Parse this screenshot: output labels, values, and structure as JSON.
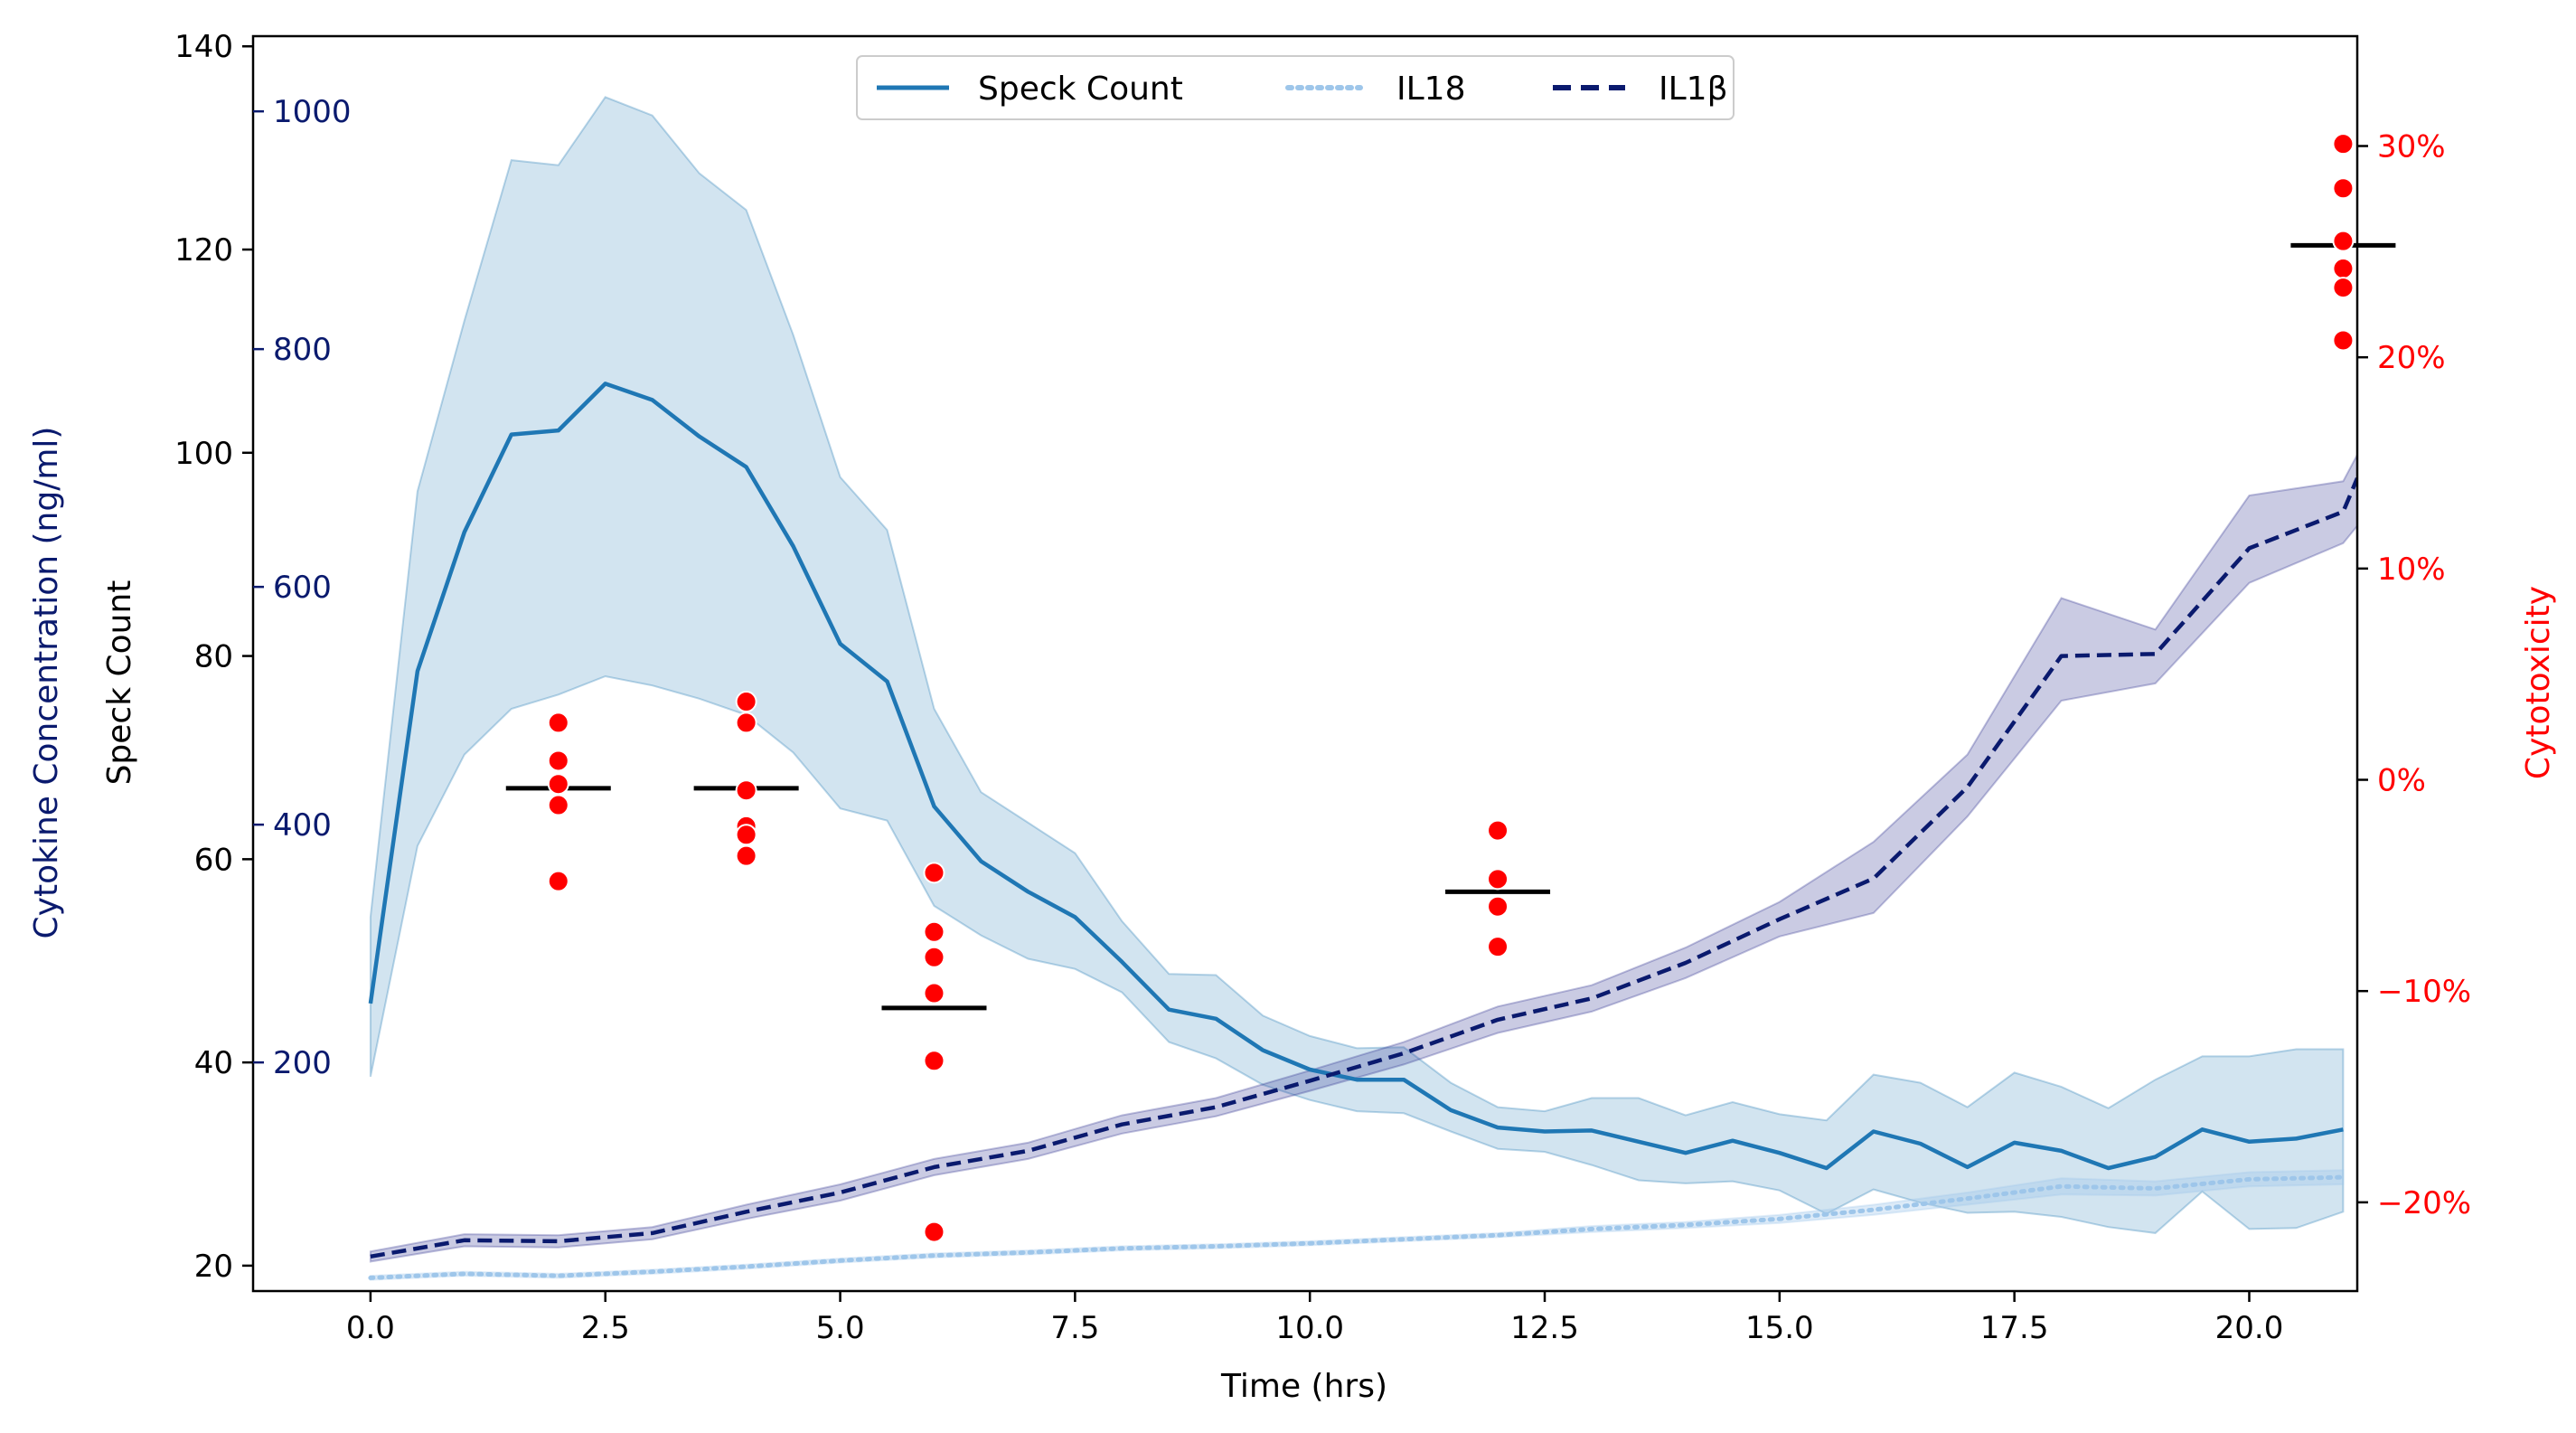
{
  "chart_data": {
    "type": "line",
    "xlabel": "Time (hrs)",
    "ylabel_left": "Speck Count",
    "ylabel_left_outer": "Cytokine Concentration (ng/ml)",
    "ylabel_right": "Cytotoxicity",
    "xlim": [
      -1.25,
      21.15
    ],
    "ylim_left": [
      17.5,
      141
    ],
    "x_ticks": [
      0.0,
      2.5,
      5.0,
      7.5,
      10.0,
      12.5,
      15.0,
      17.5,
      20.0
    ],
    "x_tick_labels": [
      "0.0",
      "2.5",
      "5.0",
      "7.5",
      "10.0",
      "12.5",
      "15.0",
      "17.5",
      "20.0"
    ],
    "y_left_ticks": [
      20,
      40,
      60,
      80,
      100,
      120,
      140
    ],
    "y_left_tick_labels": [
      "20",
      "40",
      "60",
      "80",
      "100",
      "120",
      "140"
    ],
    "cytokine_axis": {
      "ticks": [
        200,
        400,
        600,
        800,
        1000
      ],
      "tick_labels": [
        "200",
        "400",
        "600",
        "800",
        "1000"
      ],
      "speck_equivalent": [
        40,
        63.4,
        86.8,
        110.2,
        133.6
      ],
      "color": "#0a1a6e"
    },
    "cytotoxicity_axis": {
      "ticks": [
        -20,
        -10,
        0,
        10,
        20,
        30
      ],
      "tick_labels": [
        "−20%",
        "−10%",
        "0%",
        "10%",
        "20%",
        "30%"
      ],
      "ylim": [
        -24.2,
        35.2
      ],
      "color": "#ff0000"
    },
    "legend": {
      "placement": "top-center",
      "entries": [
        "Speck Count",
        "IL18",
        "IL1β"
      ]
    },
    "series": [
      {
        "name": "Speck Count",
        "color": "#1f77b4",
        "style": "solid",
        "x": [
          0,
          0.5,
          1,
          1.5,
          2,
          2.5,
          3,
          3.5,
          4,
          4.5,
          5,
          5.5,
          6,
          6.5,
          7,
          7.5,
          8,
          8.5,
          9,
          9.5,
          10,
          10.5,
          11,
          11.5,
          12,
          12.5,
          13,
          13.5,
          14,
          14.5,
          15,
          15.5,
          16,
          16.5,
          17,
          17.5,
          18,
          18.5,
          19,
          19.5,
          20,
          20.5,
          21
        ],
        "values": [
          45.8,
          78.5,
          92.2,
          101.8,
          102.2,
          106.8,
          105.2,
          101.6,
          98.6,
          90.8,
          81.2,
          77.5,
          65.2,
          59.8,
          56.8,
          54.3,
          49.9,
          45.2,
          44.3,
          41.2,
          39.3,
          38.3,
          38.3,
          35.3,
          33.6,
          33.2,
          33.3,
          32.2,
          31.1,
          32.3,
          31.1,
          29.6,
          33.2,
          32.0,
          29.7,
          32.1,
          31.3,
          29.6,
          30.7,
          33.4,
          32.2,
          32.5,
          33.4
        ],
        "ci_lower": [
          38.6,
          61.3,
          70.3,
          74.8,
          76.2,
          78.0,
          77.1,
          75.8,
          74.2,
          70.5,
          65.0,
          63.8,
          55.4,
          52.5,
          50.2,
          49.2,
          46.9,
          42.0,
          40.4,
          37.8,
          36.3,
          35.2,
          35.0,
          33.2,
          31.5,
          31.2,
          29.9,
          28.4,
          28.1,
          28.3,
          27.4,
          25.1,
          27.5,
          26.2,
          25.2,
          25.3,
          24.8,
          23.8,
          23.2,
          27.3,
          23.6,
          23.7,
          25.3
        ],
        "ci_upper": [
          54.3,
          96.2,
          113.0,
          128.8,
          128.3,
          135.0,
          133.2,
          127.5,
          123.9,
          111.6,
          97.6,
          92.4,
          74.8,
          66.6,
          63.6,
          60.6,
          53.9,
          48.7,
          48.6,
          44.6,
          42.6,
          41.4,
          41.5,
          38.0,
          35.6,
          35.2,
          36.5,
          36.5,
          34.8,
          36.1,
          34.9,
          34.3,
          38.8,
          38.0,
          35.6,
          39.0,
          37.6,
          35.5,
          38.3,
          40.6,
          40.6,
          41.3,
          41.3
        ]
      },
      {
        "name": "IL18",
        "color": "#9ec6ea",
        "style": "dotted",
        "x": [
          0,
          1,
          2,
          3,
          4,
          5,
          6,
          7,
          8,
          9,
          10,
          11,
          12,
          13,
          14,
          15,
          16,
          17,
          18,
          19,
          20,
          21
        ],
        "values": [
          18.8,
          19.2,
          19.0,
          19.4,
          19.9,
          20.5,
          21.0,
          21.3,
          21.7,
          21.9,
          22.2,
          22.6,
          23.0,
          23.6,
          24.0,
          24.6,
          25.5,
          26.6,
          27.8,
          27.6,
          28.5,
          28.7
        ],
        "ci_lower": [
          18.6,
          19.0,
          18.8,
          19.2,
          19.7,
          20.3,
          20.8,
          21.1,
          21.5,
          21.7,
          22.0,
          22.4,
          22.8,
          23.3,
          23.7,
          24.2,
          25.0,
          26.0,
          27.0,
          26.9,
          27.8,
          28.0
        ],
        "ci_upper": [
          19.0,
          19.4,
          19.2,
          19.6,
          20.1,
          20.7,
          21.2,
          21.5,
          21.9,
          22.1,
          22.4,
          22.8,
          23.2,
          23.9,
          24.3,
          25.0,
          26.0,
          27.2,
          28.6,
          28.3,
          29.2,
          29.4
        ]
      },
      {
        "name": "IL1β",
        "color": "#0a1a6e",
        "style": "dashed",
        "x": [
          0,
          1,
          2,
          3,
          4,
          5,
          6,
          7,
          8,
          9,
          10,
          11,
          12,
          13,
          14,
          15,
          16,
          17,
          18,
          19,
          20,
          21,
          21.15
        ],
        "values": [
          20.9,
          22.5,
          22.4,
          23.2,
          25.3,
          27.2,
          29.7,
          31.3,
          33.9,
          35.6,
          38.2,
          40.9,
          44.2,
          46.3,
          49.8,
          54.1,
          58.1,
          67.1,
          80.0,
          80.2,
          90.6,
          94.2,
          97.5
        ],
        "ci_lower": [
          20.4,
          21.9,
          21.8,
          22.6,
          24.6,
          26.4,
          28.9,
          30.5,
          33.0,
          34.7,
          37.2,
          39.8,
          42.9,
          45.0,
          48.3,
          52.4,
          54.7,
          64.2,
          75.6,
          77.3,
          87.2,
          91.1,
          92.8
        ],
        "ci_upper": [
          21.4,
          23.1,
          23.0,
          23.8,
          26.0,
          28.0,
          30.5,
          32.1,
          34.8,
          36.5,
          39.2,
          42.0,
          45.5,
          47.6,
          51.3,
          55.8,
          61.7,
          70.3,
          85.7,
          82.6,
          95.8,
          97.2,
          99.8
        ]
      }
    ],
    "cytotoxicity_points": [
      {
        "x": 2,
        "values": [
          2.7,
          0.9,
          -0.2,
          -1.2,
          -4.8
        ],
        "mean": -0.4
      },
      {
        "x": 4,
        "values": [
          3.7,
          2.7,
          -0.5,
          -2.2,
          -2.6,
          -3.6
        ],
        "mean": -0.4
      },
      {
        "x": 6,
        "values": [
          -4.4,
          -7.2,
          -8.4,
          -10.1,
          -13.3,
          -21.4
        ],
        "mean": -10.8
      },
      {
        "x": 12,
        "values": [
          -2.4,
          -4.7,
          -6.0,
          -7.9
        ],
        "mean": -5.3
      },
      {
        "x": 21,
        "values": [
          30.1,
          28.0,
          25.5,
          24.2,
          23.3,
          20.8
        ],
        "mean": 25.3
      }
    ],
    "grid": false
  }
}
